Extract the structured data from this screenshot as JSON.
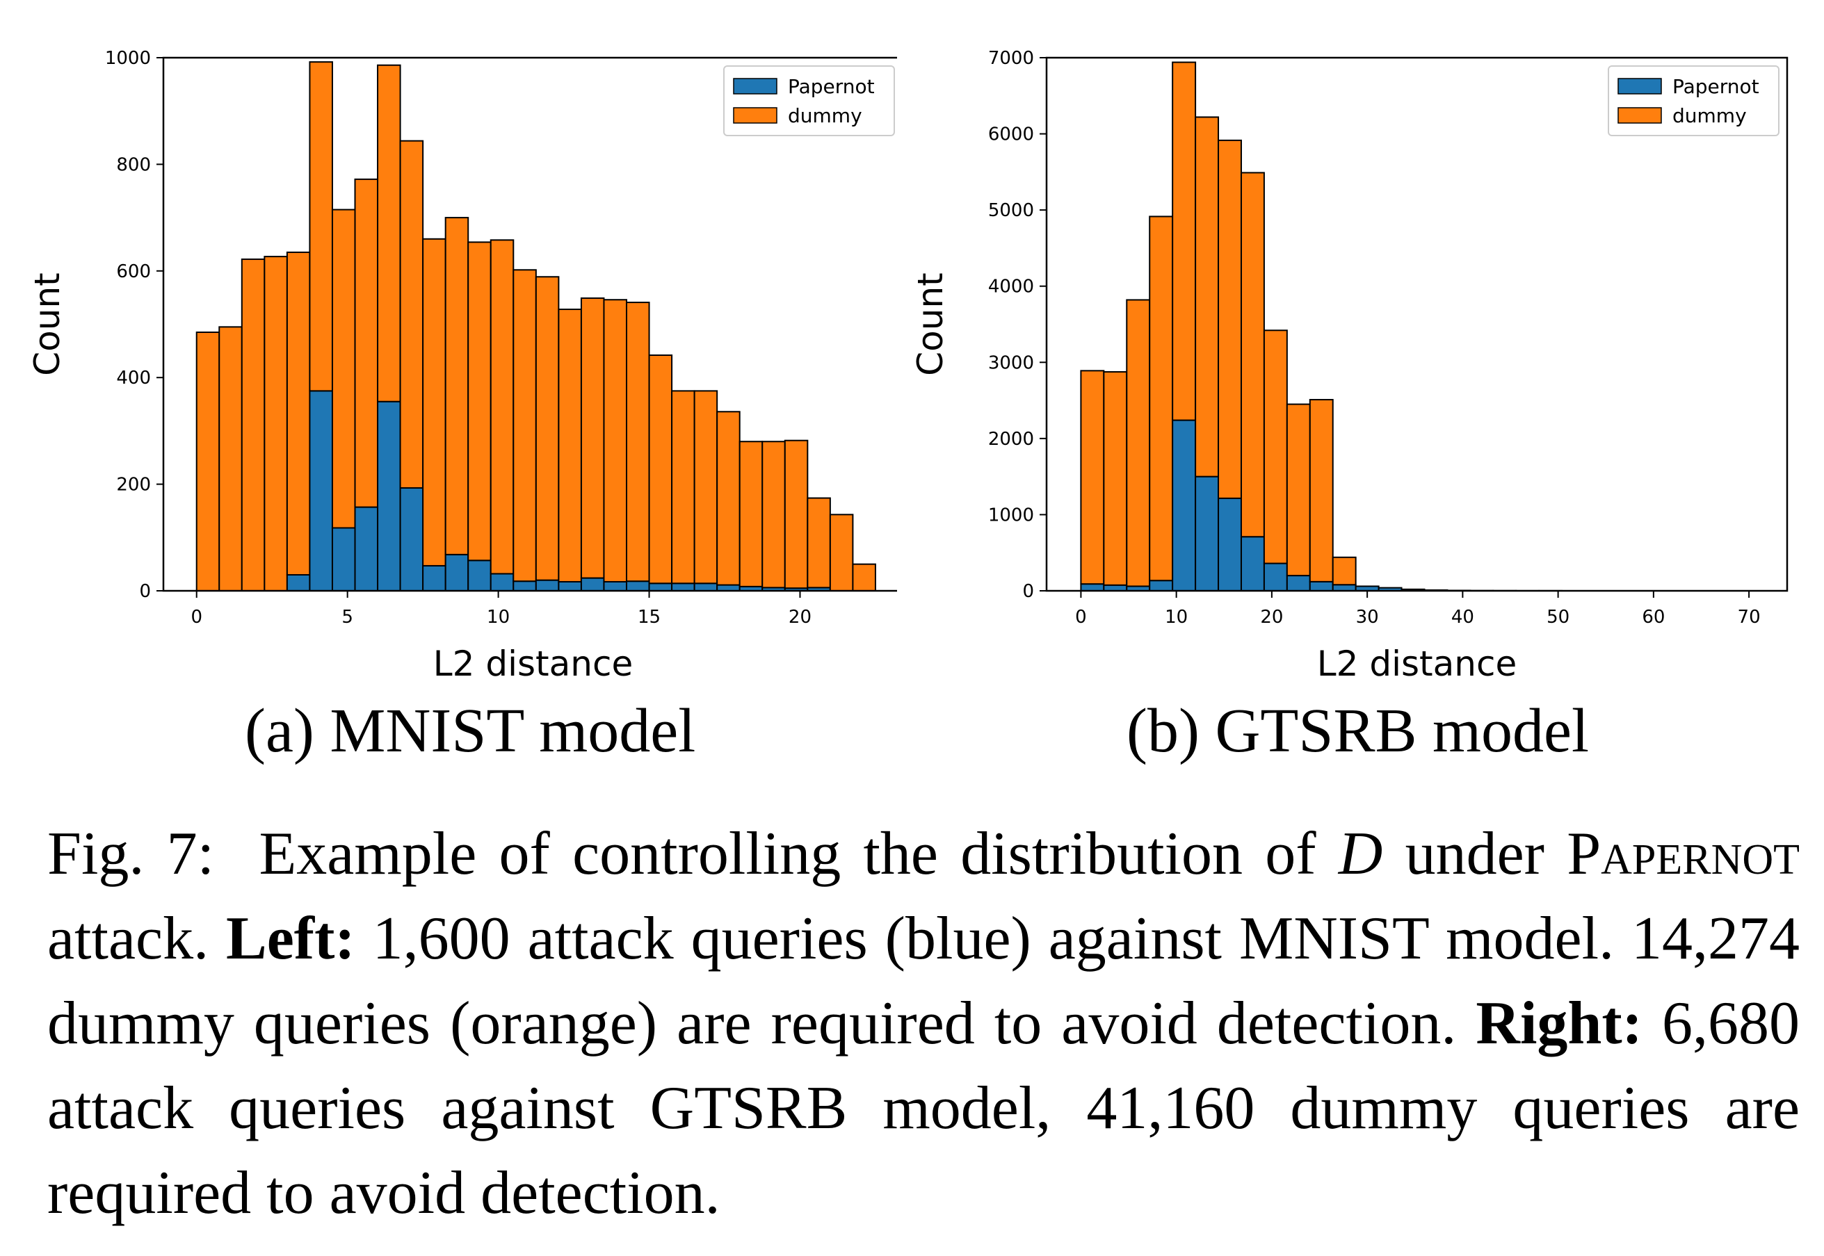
{
  "chart_data": [
    {
      "type": "bar",
      "stacked": true,
      "subcaption": "(a) MNIST model",
      "xlabel": "L2 distance",
      "ylabel": "Count",
      "xlim": [
        -1.1,
        23.4
      ],
      "ylim": [
        0,
        1000
      ],
      "xticks": [
        0,
        5,
        10,
        15,
        20
      ],
      "yticks": [
        0,
        200,
        400,
        600,
        800,
        1000
      ],
      "bin_width": 0.75,
      "bin_start": 0,
      "legend": {
        "position": "top-right",
        "entries": [
          "Papernot",
          "dummy"
        ]
      },
      "series": [
        {
          "name": "Papernot",
          "color": "#1f77b4",
          "values": [
            0,
            0,
            0,
            0,
            30,
            375,
            118,
            157,
            355,
            193,
            47,
            68,
            57,
            32,
            18,
            20,
            17,
            24,
            17,
            18,
            14,
            14,
            14,
            11,
            8,
            6,
            5,
            6,
            0,
            0
          ]
        },
        {
          "name": "dummy",
          "color": "#ff7f0e",
          "values": [
            485,
            495,
            622,
            627,
            605,
            617,
            597,
            615,
            631,
            651,
            613,
            632,
            597,
            626,
            584,
            569,
            511,
            525,
            529,
            523,
            428,
            361,
            361,
            325,
            272,
            274,
            277,
            168,
            143,
            50
          ]
        }
      ]
    },
    {
      "type": "bar",
      "stacked": true,
      "subcaption": "(b) GTSRB model",
      "xlabel": "L2 distance",
      "ylabel": "Count",
      "xlim": [
        -3.6,
        74.0
      ],
      "ylim": [
        0,
        7000
      ],
      "xticks": [
        0,
        10,
        20,
        30,
        40,
        50,
        60,
        70
      ],
      "yticks": [
        0,
        1000,
        2000,
        3000,
        4000,
        5000,
        6000,
        7000
      ],
      "bin_width": 2.4,
      "bin_start": 0,
      "legend": {
        "position": "top-right",
        "entries": [
          "Papernot",
          "dummy"
        ]
      },
      "series": [
        {
          "name": "Papernot",
          "color": "#1f77b4",
          "values": [
            90,
            75,
            60,
            135,
            2240,
            1500,
            1215,
            710,
            360,
            200,
            120,
            80,
            60,
            40,
            20,
            10,
            5,
            3,
            2,
            1,
            1,
            0,
            0,
            0,
            0,
            0,
            0,
            0,
            0,
            0
          ]
        },
        {
          "name": "dummy",
          "color": "#ff7f0e",
          "values": [
            2800,
            2800,
            3760,
            4780,
            4700,
            4720,
            4700,
            4780,
            3060,
            2250,
            2390,
            360,
            0,
            0,
            0,
            0,
            0,
            0,
            0,
            0,
            0,
            0,
            0,
            0,
            0,
            0,
            0,
            0,
            0,
            0
          ]
        }
      ]
    }
  ],
  "caption": {
    "fig_label": "Fig. 7:",
    "part1": "Example of controlling the distribution of",
    "symbol": "D",
    "part2": "under",
    "attack_name": "Papernot",
    "part3": "attack.",
    "left_label": "Left:",
    "left_text": "1,600 attack queries (blue) against MNIST model. 14,274 dummy queries (orange) are required to avoid detection.",
    "right_label": "Right:",
    "right_text": "6,680 attack queries against GTSRB model, 41,160 dummy queries are required to avoid detection."
  }
}
